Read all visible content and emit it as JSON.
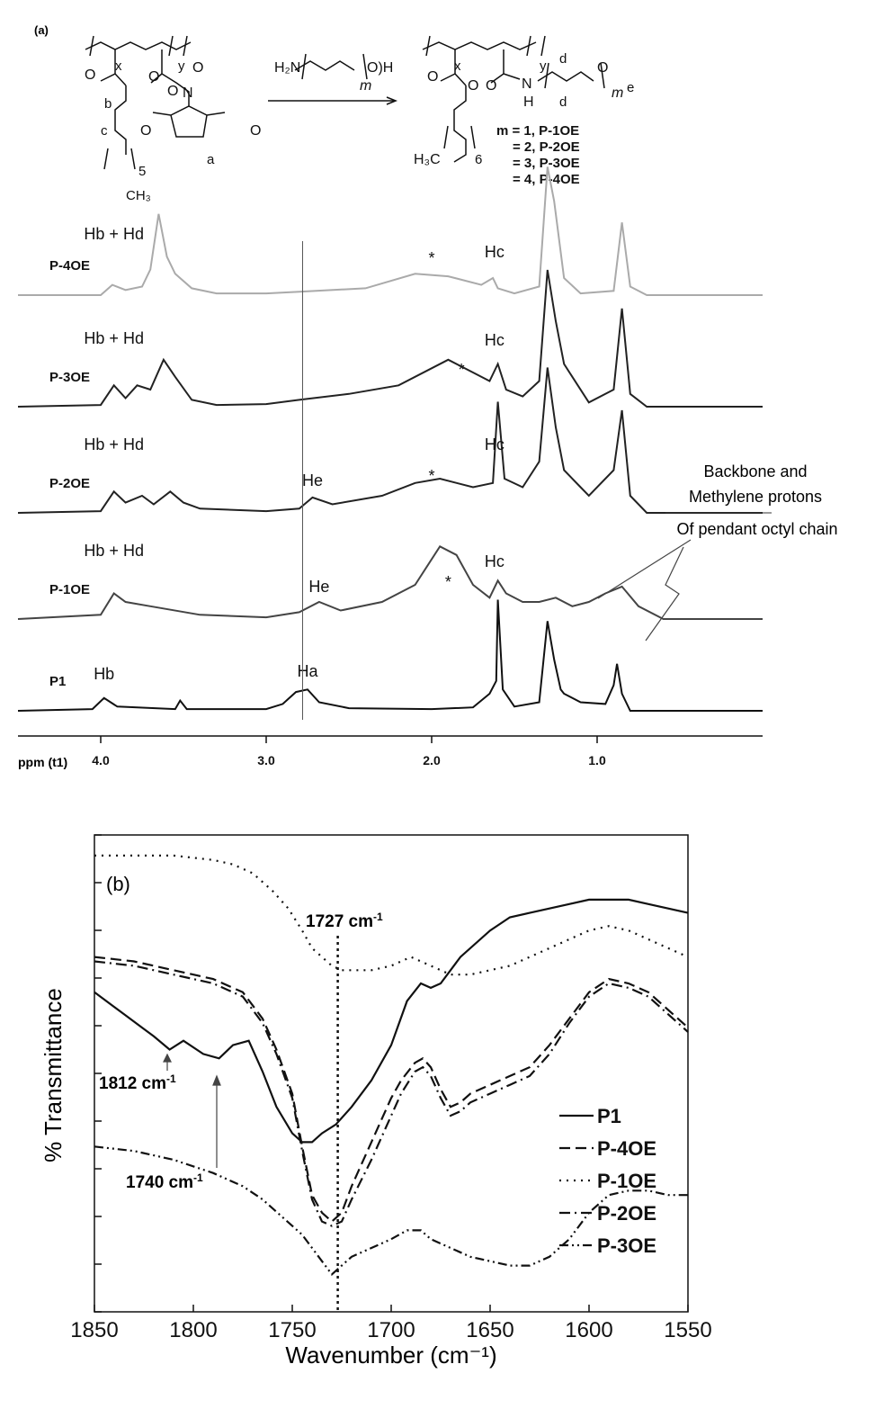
{
  "chart_data": [
    {
      "type": "line",
      "panel_label": "(a)",
      "xlabel": "ppm (t1)",
      "xlim": [
        4.5,
        0.0
      ],
      "xticks": [
        "4.0",
        "3.0",
        "2.0",
        "1.0"
      ],
      "series": [
        {
          "name": "P-4OE",
          "color": "#aaaaaa",
          "points": [
            [
              4.5,
              0
            ],
            [
              4.0,
              0
            ],
            [
              3.93,
              0.12
            ],
            [
              3.85,
              0.06
            ],
            [
              3.75,
              0.1
            ],
            [
              3.7,
              0.3
            ],
            [
              3.65,
              0.95
            ],
            [
              3.6,
              0.45
            ],
            [
              3.55,
              0.25
            ],
            [
              3.45,
              0.08
            ],
            [
              3.3,
              0.02
            ],
            [
              3.0,
              0.02
            ],
            [
              2.8,
              0.04
            ],
            [
              2.4,
              0.08
            ],
            [
              2.1,
              0.25
            ],
            [
              1.9,
              0.22
            ],
            [
              1.7,
              0.12
            ],
            [
              1.63,
              0.2
            ],
            [
              1.6,
              0.08
            ],
            [
              1.5,
              0.02
            ],
            [
              1.35,
              0.1
            ],
            [
              1.3,
              1.5
            ],
            [
              1.26,
              1.1
            ],
            [
              1.2,
              0.2
            ],
            [
              1.1,
              0.02
            ],
            [
              0.9,
              0.05
            ],
            [
              0.85,
              0.85
            ],
            [
              0.8,
              0.1
            ],
            [
              0.7,
              0
            ],
            [
              0.0,
              0
            ]
          ]
        },
        {
          "name": "P-3OE",
          "color": "#222222",
          "points": [
            [
              4.5,
              0
            ],
            [
              4.0,
              0.02
            ],
            [
              3.92,
              0.25
            ],
            [
              3.85,
              0.1
            ],
            [
              3.78,
              0.25
            ],
            [
              3.7,
              0.2
            ],
            [
              3.62,
              0.55
            ],
            [
              3.55,
              0.35
            ],
            [
              3.45,
              0.08
            ],
            [
              3.3,
              0.02
            ],
            [
              3.0,
              0.03
            ],
            [
              2.8,
              0.08
            ],
            [
              2.5,
              0.15
            ],
            [
              2.2,
              0.25
            ],
            [
              1.9,
              0.55
            ],
            [
              1.75,
              0.4
            ],
            [
              1.65,
              0.3
            ],
            [
              1.6,
              0.5
            ],
            [
              1.55,
              0.2
            ],
            [
              1.45,
              0.12
            ],
            [
              1.35,
              0.3
            ],
            [
              1.3,
              1.6
            ],
            [
              1.25,
              1.0
            ],
            [
              1.2,
              0.5
            ],
            [
              1.15,
              0.35
            ],
            [
              1.05,
              0.05
            ],
            [
              0.9,
              0.2
            ],
            [
              0.85,
              1.15
            ],
            [
              0.8,
              0.15
            ],
            [
              0.7,
              0
            ],
            [
              0.0,
              0
            ]
          ]
        },
        {
          "name": "P-2OE",
          "color": "#222222",
          "points": [
            [
              4.5,
              0
            ],
            [
              4.0,
              0.02
            ],
            [
              3.92,
              0.25
            ],
            [
              3.85,
              0.12
            ],
            [
              3.75,
              0.2
            ],
            [
              3.68,
              0.1
            ],
            [
              3.58,
              0.25
            ],
            [
              3.5,
              0.12
            ],
            [
              3.4,
              0.05
            ],
            [
              3.0,
              0.02
            ],
            [
              2.8,
              0.05
            ],
            [
              2.72,
              0.18
            ],
            [
              2.6,
              0.1
            ],
            [
              2.3,
              0.2
            ],
            [
              2.1,
              0.35
            ],
            [
              1.95,
              0.4
            ],
            [
              1.75,
              0.3
            ],
            [
              1.63,
              0.35
            ],
            [
              1.6,
              1.3
            ],
            [
              1.56,
              0.4
            ],
            [
              1.45,
              0.3
            ],
            [
              1.35,
              0.6
            ],
            [
              1.3,
              1.7
            ],
            [
              1.25,
              1.0
            ],
            [
              1.2,
              0.5
            ],
            [
              1.1,
              0.3
            ],
            [
              1.05,
              0.2
            ],
            [
              0.9,
              0.5
            ],
            [
              0.85,
              1.2
            ],
            [
              0.8,
              0.2
            ],
            [
              0.7,
              0
            ],
            [
              0.0,
              0
            ]
          ]
        },
        {
          "name": "P-1OE",
          "color": "#444444",
          "points": [
            [
              4.5,
              0
            ],
            [
              4.0,
              0.05
            ],
            [
              3.92,
              0.3
            ],
            [
              3.85,
              0.2
            ],
            [
              3.7,
              0.15
            ],
            [
              3.4,
              0.05
            ],
            [
              3.0,
              0.02
            ],
            [
              2.8,
              0.08
            ],
            [
              2.68,
              0.2
            ],
            [
              2.55,
              0.1
            ],
            [
              2.3,
              0.2
            ],
            [
              2.1,
              0.4
            ],
            [
              1.95,
              0.85
            ],
            [
              1.85,
              0.75
            ],
            [
              1.75,
              0.4
            ],
            [
              1.65,
              0.25
            ],
            [
              1.6,
              0.45
            ],
            [
              1.55,
              0.3
            ],
            [
              1.45,
              0.2
            ],
            [
              1.35,
              0.2
            ],
            [
              1.25,
              0.25
            ],
            [
              1.15,
              0.15
            ],
            [
              1.05,
              0.2
            ],
            [
              0.95,
              0.3
            ],
            [
              0.85,
              0.38
            ],
            [
              0.75,
              0.15
            ],
            [
              0.6,
              0
            ],
            [
              0.0,
              0
            ]
          ]
        },
        {
          "name": "P1",
          "color": "#111111",
          "points": [
            [
              4.5,
              0
            ],
            [
              4.05,
              0.02
            ],
            [
              3.98,
              0.15
            ],
            [
              3.9,
              0.05
            ],
            [
              3.55,
              0.02
            ],
            [
              3.52,
              0.12
            ],
            [
              3.48,
              0.02
            ],
            [
              3.0,
              0.02
            ],
            [
              2.9,
              0.08
            ],
            [
              2.82,
              0.22
            ],
            [
              2.75,
              0.25
            ],
            [
              2.68,
              0.1
            ],
            [
              2.5,
              0.03
            ],
            [
              2.0,
              0.02
            ],
            [
              1.75,
              0.04
            ],
            [
              1.65,
              0.2
            ],
            [
              1.61,
              0.35
            ],
            [
              1.6,
              1.3
            ],
            [
              1.57,
              0.25
            ],
            [
              1.5,
              0.05
            ],
            [
              1.35,
              0.1
            ],
            [
              1.3,
              1.05
            ],
            [
              1.26,
              0.6
            ],
            [
              1.22,
              0.25
            ],
            [
              1.2,
              0.2
            ],
            [
              1.1,
              0.1
            ],
            [
              0.95,
              0.08
            ],
            [
              0.9,
              0.3
            ],
            [
              0.88,
              0.55
            ],
            [
              0.85,
              0.2
            ],
            [
              0.8,
              0
            ],
            [
              0.0,
              0
            ]
          ]
        }
      ],
      "annotations": [
        {
          "series": "P-4OE",
          "peaks": [
            "Hb + Hd",
            "*",
            "Hc"
          ]
        },
        {
          "series": "P-3OE",
          "peaks": [
            "Hb + Hd",
            "*",
            "Hc"
          ]
        },
        {
          "series": "P-2OE",
          "peaks": [
            "Hb + Hd",
            "He",
            "*",
            "Hc"
          ]
        },
        {
          "series": "P-1OE",
          "peaks": [
            "Hb + Hd",
            "He",
            "*",
            "Hc"
          ]
        },
        {
          "series": "P1",
          "peaks": [
            "Hb",
            "Ha"
          ]
        }
      ],
      "callout": [
        "Backbone and",
        "Methylene protons",
        "Of pendant octyl chain"
      ],
      "scheme": {
        "reagent": "H₂N–(CH₂CH₂O)ₘ–H",
        "reagent_var": "m",
        "labels": [
          "a",
          "b",
          "c",
          "d",
          "d",
          "e",
          "x",
          "y",
          "5",
          "6"
        ],
        "products": [
          "m = 1, P-1OE",
          "= 2, P-2OE",
          "= 3, P-3OE",
          "= 4, P-4OE"
        ]
      }
    },
    {
      "type": "line",
      "panel_label": "(b)",
      "xlabel": "Wavenumber (cm⁻¹)",
      "ylabel": "% Transmittance",
      "xlim": [
        1850,
        1550
      ],
      "xticks": [
        1850,
        1800,
        1750,
        1700,
        1650,
        1600,
        1550
      ],
      "ylim": [
        0,
        100
      ],
      "legend": "right",
      "annotations": [
        "1727 cm⁻¹",
        "1812 cm⁻¹",
        "1740 cm⁻¹"
      ],
      "series": [
        {
          "name": "P1",
          "dash": "solid",
          "x": [
            1850,
            1835,
            1820,
            1812,
            1805,
            1795,
            1787,
            1780,
            1772,
            1765,
            1758,
            1750,
            1745,
            1740,
            1735,
            1728,
            1720,
            1710,
            1700,
            1692,
            1685,
            1680,
            1675,
            1665,
            1650,
            1640,
            1630,
            1620,
            1610,
            1600,
            1590,
            1580,
            1570,
            1560,
            1550
          ],
          "y": [
            68,
            63,
            58,
            55,
            57,
            54,
            53,
            56,
            57,
            50,
            42,
            36,
            34,
            34,
            36,
            38,
            42,
            48,
            56,
            66,
            70,
            69,
            70,
            76,
            82,
            85,
            86,
            87,
            88,
            89,
            89,
            89,
            88,
            87,
            86
          ]
        },
        {
          "name": "P-4OE",
          "dash": "dash",
          "x": [
            1850,
            1830,
            1810,
            1790,
            1775,
            1765,
            1758,
            1750,
            1745,
            1740,
            1735,
            1730,
            1725,
            1720,
            1710,
            1700,
            1695,
            1688,
            1684,
            1680,
            1675,
            1670,
            1665,
            1660,
            1650,
            1640,
            1630,
            1620,
            1610,
            1600,
            1590,
            1580,
            1570,
            1560,
            1550
          ],
          "y": [
            76,
            75,
            73,
            71,
            68,
            62,
            55,
            45,
            33,
            22,
            18,
            16,
            18,
            24,
            34,
            44,
            48,
            52,
            53,
            51,
            46,
            42,
            43,
            45,
            47,
            49,
            51,
            56,
            62,
            68,
            71,
            70,
            68,
            64,
            60
          ]
        },
        {
          "name": "P-1OE",
          "dash": "dot",
          "x": [
            1850,
            1830,
            1810,
            1790,
            1780,
            1770,
            1760,
            1752,
            1745,
            1740,
            1735,
            1730,
            1725,
            1720,
            1710,
            1700,
            1690,
            1680,
            1670,
            1660,
            1650,
            1640,
            1630,
            1620,
            1610,
            1600,
            1590,
            1580,
            1570,
            1560,
            1550
          ],
          "y": [
            99,
            99,
            99,
            98,
            97,
            95,
            91,
            87,
            82,
            78,
            76,
            74,
            73,
            73,
            73,
            74,
            76,
            74,
            72,
            72,
            73,
            74,
            76,
            78,
            80,
            82,
            83,
            82,
            80,
            78,
            76
          ]
        },
        {
          "name": "P-2OE",
          "dash": "dashdot",
          "x": [
            1850,
            1830,
            1810,
            1790,
            1775,
            1765,
            1758,
            1750,
            1745,
            1740,
            1735,
            1730,
            1725,
            1720,
            1710,
            1700,
            1695,
            1688,
            1684,
            1680,
            1675,
            1670,
            1665,
            1660,
            1650,
            1640,
            1630,
            1620,
            1610,
            1600,
            1590,
            1580,
            1570,
            1560,
            1550
          ],
          "y": [
            75,
            74,
            72,
            70,
            67,
            61,
            54,
            44,
            32,
            21,
            16,
            15,
            16,
            21,
            30,
            40,
            45,
            50,
            51,
            49,
            44,
            40,
            41,
            43,
            45,
            47,
            49,
            54,
            61,
            67,
            70,
            69,
            67,
            63,
            59
          ]
        },
        {
          "name": "P-3OE",
          "dash": "dashdotdot",
          "x": [
            1850,
            1830,
            1810,
            1790,
            1775,
            1765,
            1755,
            1745,
            1740,
            1735,
            1730,
            1725,
            1720,
            1710,
            1700,
            1692,
            1685,
            1680,
            1670,
            1660,
            1650,
            1640,
            1630,
            1620,
            1610,
            1600,
            1590,
            1580,
            1570,
            1560,
            1550
          ],
          "y": [
            33,
            32,
            30,
            27,
            24,
            21,
            17,
            13,
            10,
            7,
            4,
            6,
            8,
            10,
            12,
            14,
            14,
            12,
            10,
            8,
            7,
            6,
            6,
            8,
            12,
            18,
            22,
            23,
            23,
            22,
            22
          ]
        }
      ]
    }
  ]
}
